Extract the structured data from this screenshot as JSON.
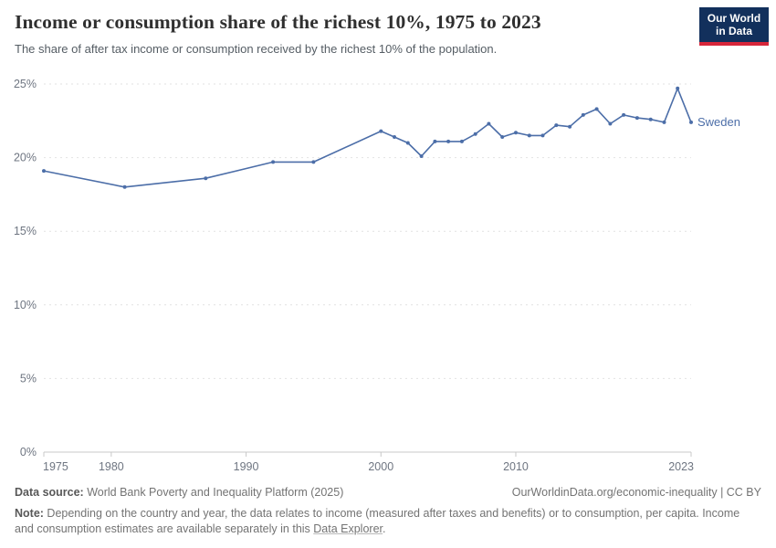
{
  "header": {
    "title": "Income or consumption share of the richest 10%, 1975 to 2023",
    "subtitle": "The share of after tax income or consumption received by the richest 10% of the population.",
    "logo": {
      "line1": "Our World",
      "line2": "in Data",
      "bg_color": "#12305c",
      "accent_color": "#d7263a"
    }
  },
  "chart_data": {
    "type": "line",
    "title": "Income or consumption share of the richest 10%, 1975 to 2023",
    "xlabel": "",
    "ylabel": "",
    "xlim": [
      1975,
      2023
    ],
    "ylim": [
      0,
      25
    ],
    "yticks": [
      0,
      5,
      10,
      15,
      20,
      25
    ],
    "ytick_suffix": "%",
    "xticks": [
      1975,
      1980,
      1990,
      2000,
      2010,
      2023
    ],
    "grid": "horizontal-dashed",
    "legend_position": "end-of-line-label",
    "series": [
      {
        "name": "Sweden",
        "color": "#4c6ea8",
        "points": [
          [
            1975,
            19.1
          ],
          [
            1981,
            18.0
          ],
          [
            1987,
            18.6
          ],
          [
            1992,
            19.7
          ],
          [
            1995,
            19.7
          ],
          [
            2000,
            21.8
          ],
          [
            2001,
            21.4
          ],
          [
            2002,
            21.0
          ],
          [
            2003,
            20.1
          ],
          [
            2004,
            21.1
          ],
          [
            2005,
            21.1
          ],
          [
            2006,
            21.1
          ],
          [
            2007,
            21.6
          ],
          [
            2008,
            22.3
          ],
          [
            2009,
            21.4
          ],
          [
            2010,
            21.7
          ],
          [
            2011,
            21.5
          ],
          [
            2012,
            21.5
          ],
          [
            2013,
            22.2
          ],
          [
            2014,
            22.1
          ],
          [
            2015,
            22.9
          ],
          [
            2016,
            23.3
          ],
          [
            2017,
            22.3
          ],
          [
            2018,
            22.9
          ],
          [
            2019,
            22.7
          ],
          [
            2020,
            22.6
          ],
          [
            2021,
            22.4
          ],
          [
            2022,
            24.7
          ],
          [
            2023,
            22.4
          ]
        ]
      }
    ],
    "colors": {
      "gridline": "#e2e2e2",
      "axis_line": "#c8c8c8",
      "tick_label": "#6e7581"
    }
  },
  "footer": {
    "datasource_label": "Data source:",
    "datasource_value": " World Bank Poverty and Inequality Platform (2025)",
    "attribution": "OurWorldinData.org/economic-inequality | CC BY",
    "note_label": "Note:",
    "note_text_before_link": " Depending on the country and year, the data relates to income (measured after taxes and benefits) or to consumption, per capita. Income and consumption estimates are available separately in this ",
    "note_link": "Data Explorer",
    "note_after_link": "."
  }
}
